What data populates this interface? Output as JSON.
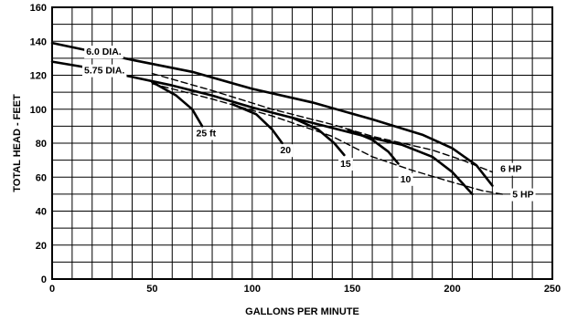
{
  "chart_data": {
    "type": "line",
    "title": "",
    "xlabel": "GALLONS PER MINUTE",
    "ylabel": "TOTAL HEAD - FEET",
    "xlim": [
      0,
      250
    ],
    "ylim": [
      0,
      160
    ],
    "x_ticks": [
      "0",
      "50",
      "100",
      "150",
      "200",
      "250"
    ],
    "y_ticks": [
      "0",
      "20",
      "40",
      "60",
      "80",
      "100",
      "120",
      "140",
      "160"
    ],
    "grid": true,
    "series": [
      {
        "name": "6.0 DIA.",
        "style": "solid",
        "points": [
          [
            0,
            139
          ],
          [
            20,
            134
          ],
          [
            40,
            129
          ],
          [
            70,
            122
          ],
          [
            100,
            112
          ],
          [
            130,
            104
          ],
          [
            160,
            94
          ],
          [
            185,
            85
          ],
          [
            200,
            77
          ],
          [
            212,
            67
          ],
          [
            220,
            55
          ]
        ]
      },
      {
        "name": "5.75 DIA.",
        "style": "solid",
        "points": [
          [
            0,
            128
          ],
          [
            20,
            124
          ],
          [
            40,
            119
          ],
          [
            60,
            114
          ],
          [
            80,
            108
          ],
          [
            100,
            101
          ],
          [
            120,
            95
          ],
          [
            140,
            89
          ],
          [
            160,
            83
          ],
          [
            175,
            79
          ],
          [
            190,
            72
          ],
          [
            200,
            63
          ],
          [
            210,
            50
          ]
        ]
      },
      {
        "name": "6 HP",
        "style": "dashed",
        "points": [
          [
            50,
            121
          ],
          [
            80,
            111
          ],
          [
            110,
            100
          ],
          [
            140,
            91
          ],
          [
            160,
            84
          ],
          [
            190,
            76
          ],
          [
            205,
            70
          ],
          [
            220,
            63
          ]
        ]
      },
      {
        "name": "5 HP",
        "style": "dashed",
        "points": [
          [
            50,
            115
          ],
          [
            80,
            106
          ],
          [
            110,
            96
          ],
          [
            140,
            84
          ],
          [
            160,
            72
          ],
          [
            180,
            64
          ],
          [
            200,
            57
          ],
          [
            215,
            52
          ],
          [
            225,
            50
          ]
        ]
      },
      {
        "name": "25 ft",
        "style": "solid",
        "points": [
          [
            50,
            116
          ],
          [
            62,
            108
          ],
          [
            70,
            100
          ],
          [
            75,
            90
          ]
        ]
      },
      {
        "name": "20",
        "style": "solid",
        "points": [
          [
            90,
            103
          ],
          [
            102,
            97
          ],
          [
            110,
            88
          ],
          [
            115,
            80
          ]
        ]
      },
      {
        "name": "15",
        "style": "solid",
        "points": [
          [
            120,
            95
          ],
          [
            133,
            88
          ],
          [
            141,
            80
          ],
          [
            146,
            73
          ]
        ]
      },
      {
        "name": "10",
        "style": "solid",
        "points": [
          [
            148,
            88
          ],
          [
            160,
            82
          ],
          [
            168,
            75
          ],
          [
            173,
            68
          ]
        ]
      }
    ],
    "annotations": [
      {
        "text": "6.0 DIA.",
        "x": 17,
        "y": 132
      },
      {
        "text": "5.75 DIA.",
        "x": 16,
        "y": 121
      },
      {
        "text": "25 ft",
        "x": 72,
        "y": 84
      },
      {
        "text": "20",
        "x": 114,
        "y": 74
      },
      {
        "text": "15",
        "x": 144,
        "y": 66
      },
      {
        "text": "10",
        "x": 174,
        "y": 57
      },
      {
        "text": "6 HP",
        "x": 224,
        "y": 63
      },
      {
        "text": "5 HP",
        "x": 230,
        "y": 48
      }
    ]
  }
}
